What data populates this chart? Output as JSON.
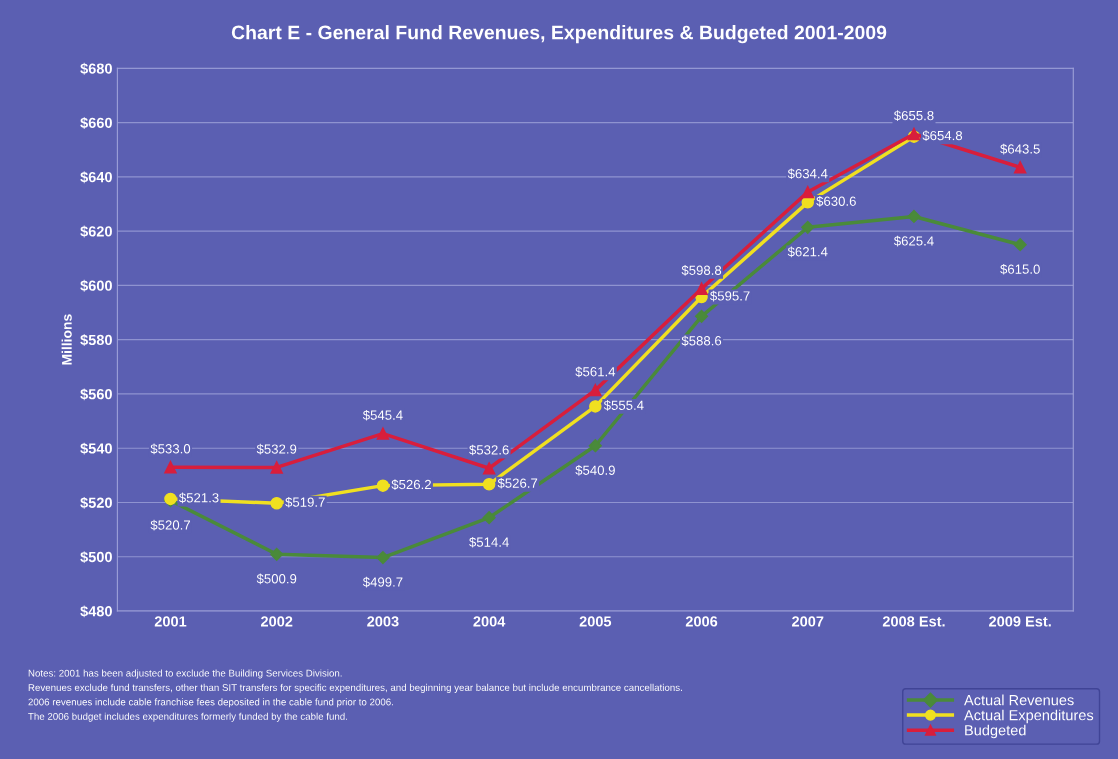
{
  "chart_data": {
    "type": "line",
    "title": "Chart E - General Fund Revenues, Expenditures & Budgeted 2001-2009",
    "ylabel": "Millions",
    "categories": [
      "2001",
      "2002",
      "2003",
      "2004",
      "2005",
      "2006",
      "2007",
      "2008 Est.",
      "2009 Est."
    ],
    "series": [
      {
        "name": "Actual Revenues",
        "color": "#4a8a3a",
        "marker": "diamond",
        "values": [
          520.7,
          500.9,
          499.7,
          514.4,
          540.9,
          588.6,
          621.4,
          625.4,
          615.0
        ],
        "value_labels": [
          "$520.7",
          "$500.9",
          "$499.7",
          "$514.4",
          "$540.9",
          "$588.6",
          "$621.4",
          "$625.4",
          "$615.0"
        ]
      },
      {
        "name": "Actual Expenditures",
        "color": "#f0e020",
        "marker": "circle",
        "values": [
          521.3,
          519.7,
          526.2,
          526.7,
          555.4,
          595.7,
          630.6,
          654.8,
          null
        ],
        "value_labels": [
          "$521.3",
          "$519.7",
          "$526.2",
          "$526.7",
          "$555.4",
          "$595.7",
          "$630.6",
          "$654.8",
          null
        ]
      },
      {
        "name": "Budgeted",
        "color": "#d81e3c",
        "marker": "triangle",
        "values": [
          533.0,
          532.9,
          545.4,
          532.6,
          561.4,
          598.8,
          634.4,
          655.8,
          643.5
        ],
        "value_labels": [
          "$533.0",
          "$532.9",
          "$545.4",
          "$532.6",
          "$561.4",
          "$598.8",
          "$634.4",
          "$655.8",
          "$643.5"
        ]
      }
    ],
    "ylim": [
      480,
      680
    ],
    "yticks": [
      {
        "value": 480,
        "label": "$480"
      },
      {
        "value": 500,
        "label": "$500"
      },
      {
        "value": 520,
        "label": "$520"
      },
      {
        "value": 540,
        "label": "$540"
      },
      {
        "value": 560,
        "label": "$560"
      },
      {
        "value": 580,
        "label": "$580"
      },
      {
        "value": 600,
        "label": "$600"
      },
      {
        "value": 620,
        "label": "$620"
      },
      {
        "value": 640,
        "label": "$640"
      },
      {
        "value": 660,
        "label": "$660"
      },
      {
        "value": 680,
        "label": "$680"
      }
    ],
    "grid": "y",
    "legend": "bottom right",
    "line_style": "solid",
    "annotations": [
      "Notes: 2001 has been adjusted to exclude the Building Services Division.",
      "Revenues exclude fund transfers, other than SIT transfers for specific expenditures, and beginning year balance but include encumbrance cancellations.",
      "2006 revenues include cable franchise fees deposited in the cable fund prior to 2006.",
      "The 2006 budget includes expenditures formerly funded by the cable fund."
    ]
  }
}
